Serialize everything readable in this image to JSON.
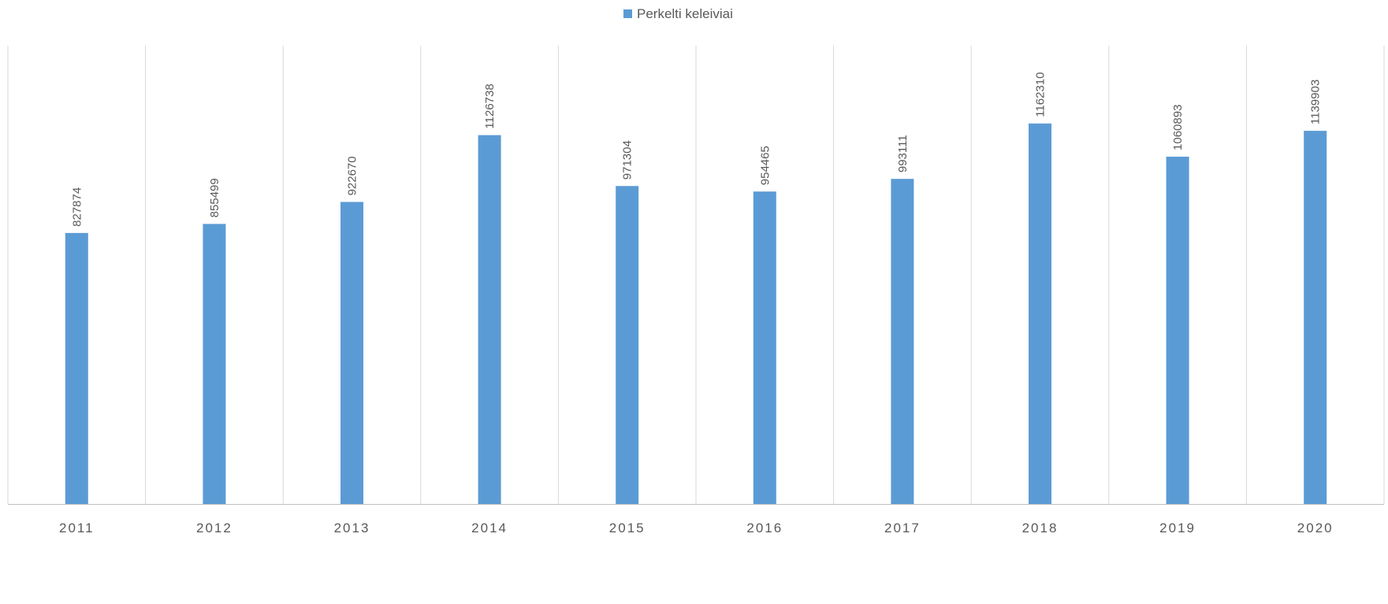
{
  "chart_data": {
    "type": "bar",
    "title": "",
    "xlabel": "",
    "ylabel": "",
    "categories": [
      "2011",
      "2012",
      "2013",
      "2014",
      "2015",
      "2016",
      "2017",
      "2018",
      "2019",
      "2020"
    ],
    "series": [
      {
        "name": "Perkelti keleiviai",
        "values": [
          827874,
          855499,
          922670,
          1126738,
          971304,
          954465,
          993111,
          1162310,
          1060893,
          1139903
        ],
        "color": "#5b9bd5"
      }
    ],
    "data_labels": [
      "827874",
      "855499",
      "922670",
      "1126738",
      "971304",
      "954465",
      "993111",
      "1162310",
      "1060893",
      "1139903"
    ],
    "ylim": [
      0,
      1400000
    ],
    "y_axis_visible": false,
    "grid": "vertical category separators",
    "legend_position": "top",
    "label_orientation": "vertical",
    "colors": {
      "bar": "#5b9bd5",
      "gridline": "#d9d9d9",
      "axis_line": "#bfbfbf",
      "label_text": "#595959"
    }
  }
}
